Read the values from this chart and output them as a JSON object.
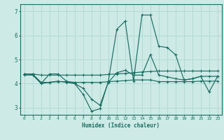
{
  "xlabel": "Humidex (Indice chaleur)",
  "bg_color": "#ceeae6",
  "line_color": "#1a6e62",
  "grid_color": "#b0d8d4",
  "xlim": [
    -0.5,
    23.5
  ],
  "ylim": [
    2.7,
    7.3
  ],
  "yticks": [
    3,
    4,
    5,
    6,
    7
  ],
  "xticks": [
    0,
    1,
    2,
    3,
    4,
    5,
    6,
    7,
    8,
    9,
    10,
    11,
    12,
    13,
    14,
    15,
    16,
    17,
    18,
    19,
    20,
    21,
    22,
    23
  ],
  "lines": [
    {
      "x": [
        0,
        1,
        2,
        3,
        4,
        5,
        6,
        7,
        8,
        9,
        10,
        11,
        12,
        13,
        14,
        15,
        16,
        17,
        18,
        19,
        20,
        21,
        22,
        23
      ],
      "y": [
        4.4,
        4.4,
        4.0,
        4.4,
        4.4,
        4.1,
        4.0,
        3.55,
        2.85,
        2.95,
        4.1,
        6.25,
        6.6,
        4.1,
        6.85,
        6.85,
        5.55,
        5.5,
        5.2,
        4.15,
        4.2,
        4.3,
        3.65,
        4.3
      ]
    },
    {
      "x": [
        0,
        1,
        2,
        3,
        4,
        5,
        6,
        7,
        8,
        9,
        10,
        11,
        12,
        13,
        14,
        15,
        16,
        17,
        18,
        19,
        20,
        21,
        22,
        23
      ],
      "y": [
        4.4,
        4.4,
        4.35,
        4.35,
        4.35,
        4.35,
        4.35,
        4.35,
        4.35,
        4.35,
        4.38,
        4.4,
        4.42,
        4.45,
        4.48,
        4.5,
        4.52,
        4.52,
        4.52,
        4.52,
        4.52,
        4.52,
        4.52,
        4.52
      ]
    },
    {
      "x": [
        0,
        1,
        2,
        3,
        4,
        5,
        6,
        7,
        8,
        9,
        10,
        11,
        12,
        13,
        14,
        15,
        16,
        17,
        18,
        19,
        20,
        21,
        22,
        23
      ],
      "y": [
        4.4,
        4.38,
        4.05,
        4.05,
        4.08,
        4.08,
        4.05,
        4.05,
        4.05,
        4.05,
        4.08,
        4.1,
        4.12,
        4.15,
        4.15,
        4.15,
        4.08,
        4.08,
        4.08,
        4.08,
        4.08,
        4.1,
        4.1,
        4.1
      ]
    },
    {
      "x": [
        0,
        1,
        2,
        3,
        4,
        5,
        6,
        7,
        8,
        9,
        10,
        11,
        12,
        13,
        14,
        15,
        16,
        17,
        18,
        19,
        20,
        21,
        22,
        23
      ],
      "y": [
        4.35,
        4.35,
        4.0,
        4.05,
        4.1,
        4.05,
        4.0,
        3.8,
        3.35,
        3.1,
        4.05,
        4.45,
        4.55,
        4.35,
        4.35,
        5.2,
        4.35,
        4.28,
        4.2,
        4.15,
        4.2,
        4.3,
        4.3,
        4.3
      ]
    }
  ]
}
